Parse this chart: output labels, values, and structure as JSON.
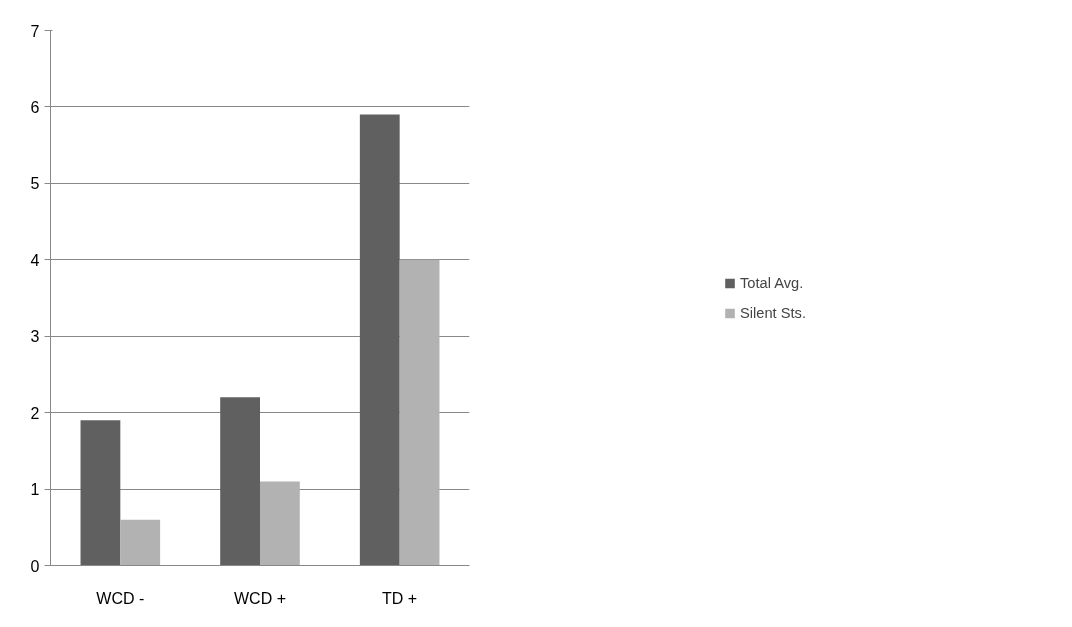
{
  "chart_data": {
    "type": "bar",
    "categories": [
      "WCD -",
      "WCD +",
      "TD +"
    ],
    "series": [
      {
        "name": "Total Avg.",
        "color": "#606060",
        "values": [
          1.9,
          2.2,
          5.9
        ]
      },
      {
        "name": "Silent Sts.",
        "color": "#b2b2b2",
        "values": [
          0.6,
          1.1,
          4.0
        ]
      }
    ],
    "ylim": [
      0,
      7
    ],
    "yticks": [
      0,
      1,
      2,
      3,
      4,
      5,
      6,
      7
    ],
    "grid": "y",
    "legend": "right"
  }
}
